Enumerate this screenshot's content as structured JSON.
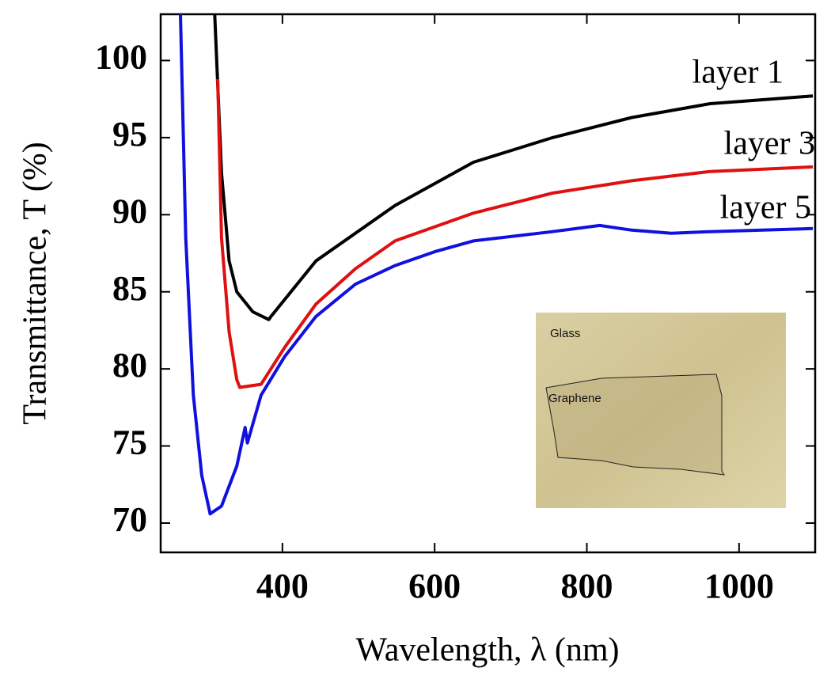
{
  "chart_data": {
    "type": "line",
    "xlabel": "Wavelength, λ (nm)",
    "ylabel": "Transmittance, T (%)",
    "xlim": [
      240,
      1100
    ],
    "ylim": [
      68.1,
      103
    ],
    "xticks": [
      400,
      600,
      800,
      1000
    ],
    "yticks": [
      70,
      75,
      80,
      85,
      90,
      95,
      100
    ],
    "series": [
      {
        "name": "layer 1",
        "color": "#000000",
        "x": [
          311,
          320,
          330,
          340,
          361,
          382,
          385,
          444,
          548,
          651,
          755,
          859,
          962,
          1097
        ],
        "values": [
          103,
          92.7,
          87,
          85,
          83.7,
          83.2,
          83.4,
          87.0,
          90.6,
          93.4,
          95.0,
          96.3,
          97.2,
          97.7
        ]
      },
      {
        "name": "layer 3",
        "color": "#e01010",
        "x": [
          315,
          320,
          330,
          340,
          344,
          372,
          403,
          444,
          496,
          548,
          651,
          755,
          859,
          962,
          1097
        ],
        "values": [
          98.8,
          88.5,
          82.4,
          79.3,
          78.8,
          79.0,
          81.4,
          84.2,
          86.5,
          88.3,
          90.1,
          91.4,
          92.2,
          92.8,
          93.1
        ]
      },
      {
        "name": "layer 5",
        "color": "#1010e0",
        "x": [
          266,
          273,
          283,
          294,
          305,
          320,
          340,
          351,
          354,
          372,
          403,
          444,
          496,
          548,
          600,
          651,
          755,
          817,
          859,
          911,
          962,
          1097
        ],
        "values": [
          103,
          88.5,
          78.3,
          73.1,
          70.6,
          71.1,
          73.7,
          76.2,
          75.2,
          78.3,
          80.8,
          83.4,
          85.5,
          86.7,
          87.6,
          88.3,
          88.9,
          89.3,
          89.0,
          88.8,
          88.9,
          89.1
        ]
      }
    ],
    "inset": {
      "labels": [
        "Glass",
        "Graphene"
      ]
    }
  }
}
